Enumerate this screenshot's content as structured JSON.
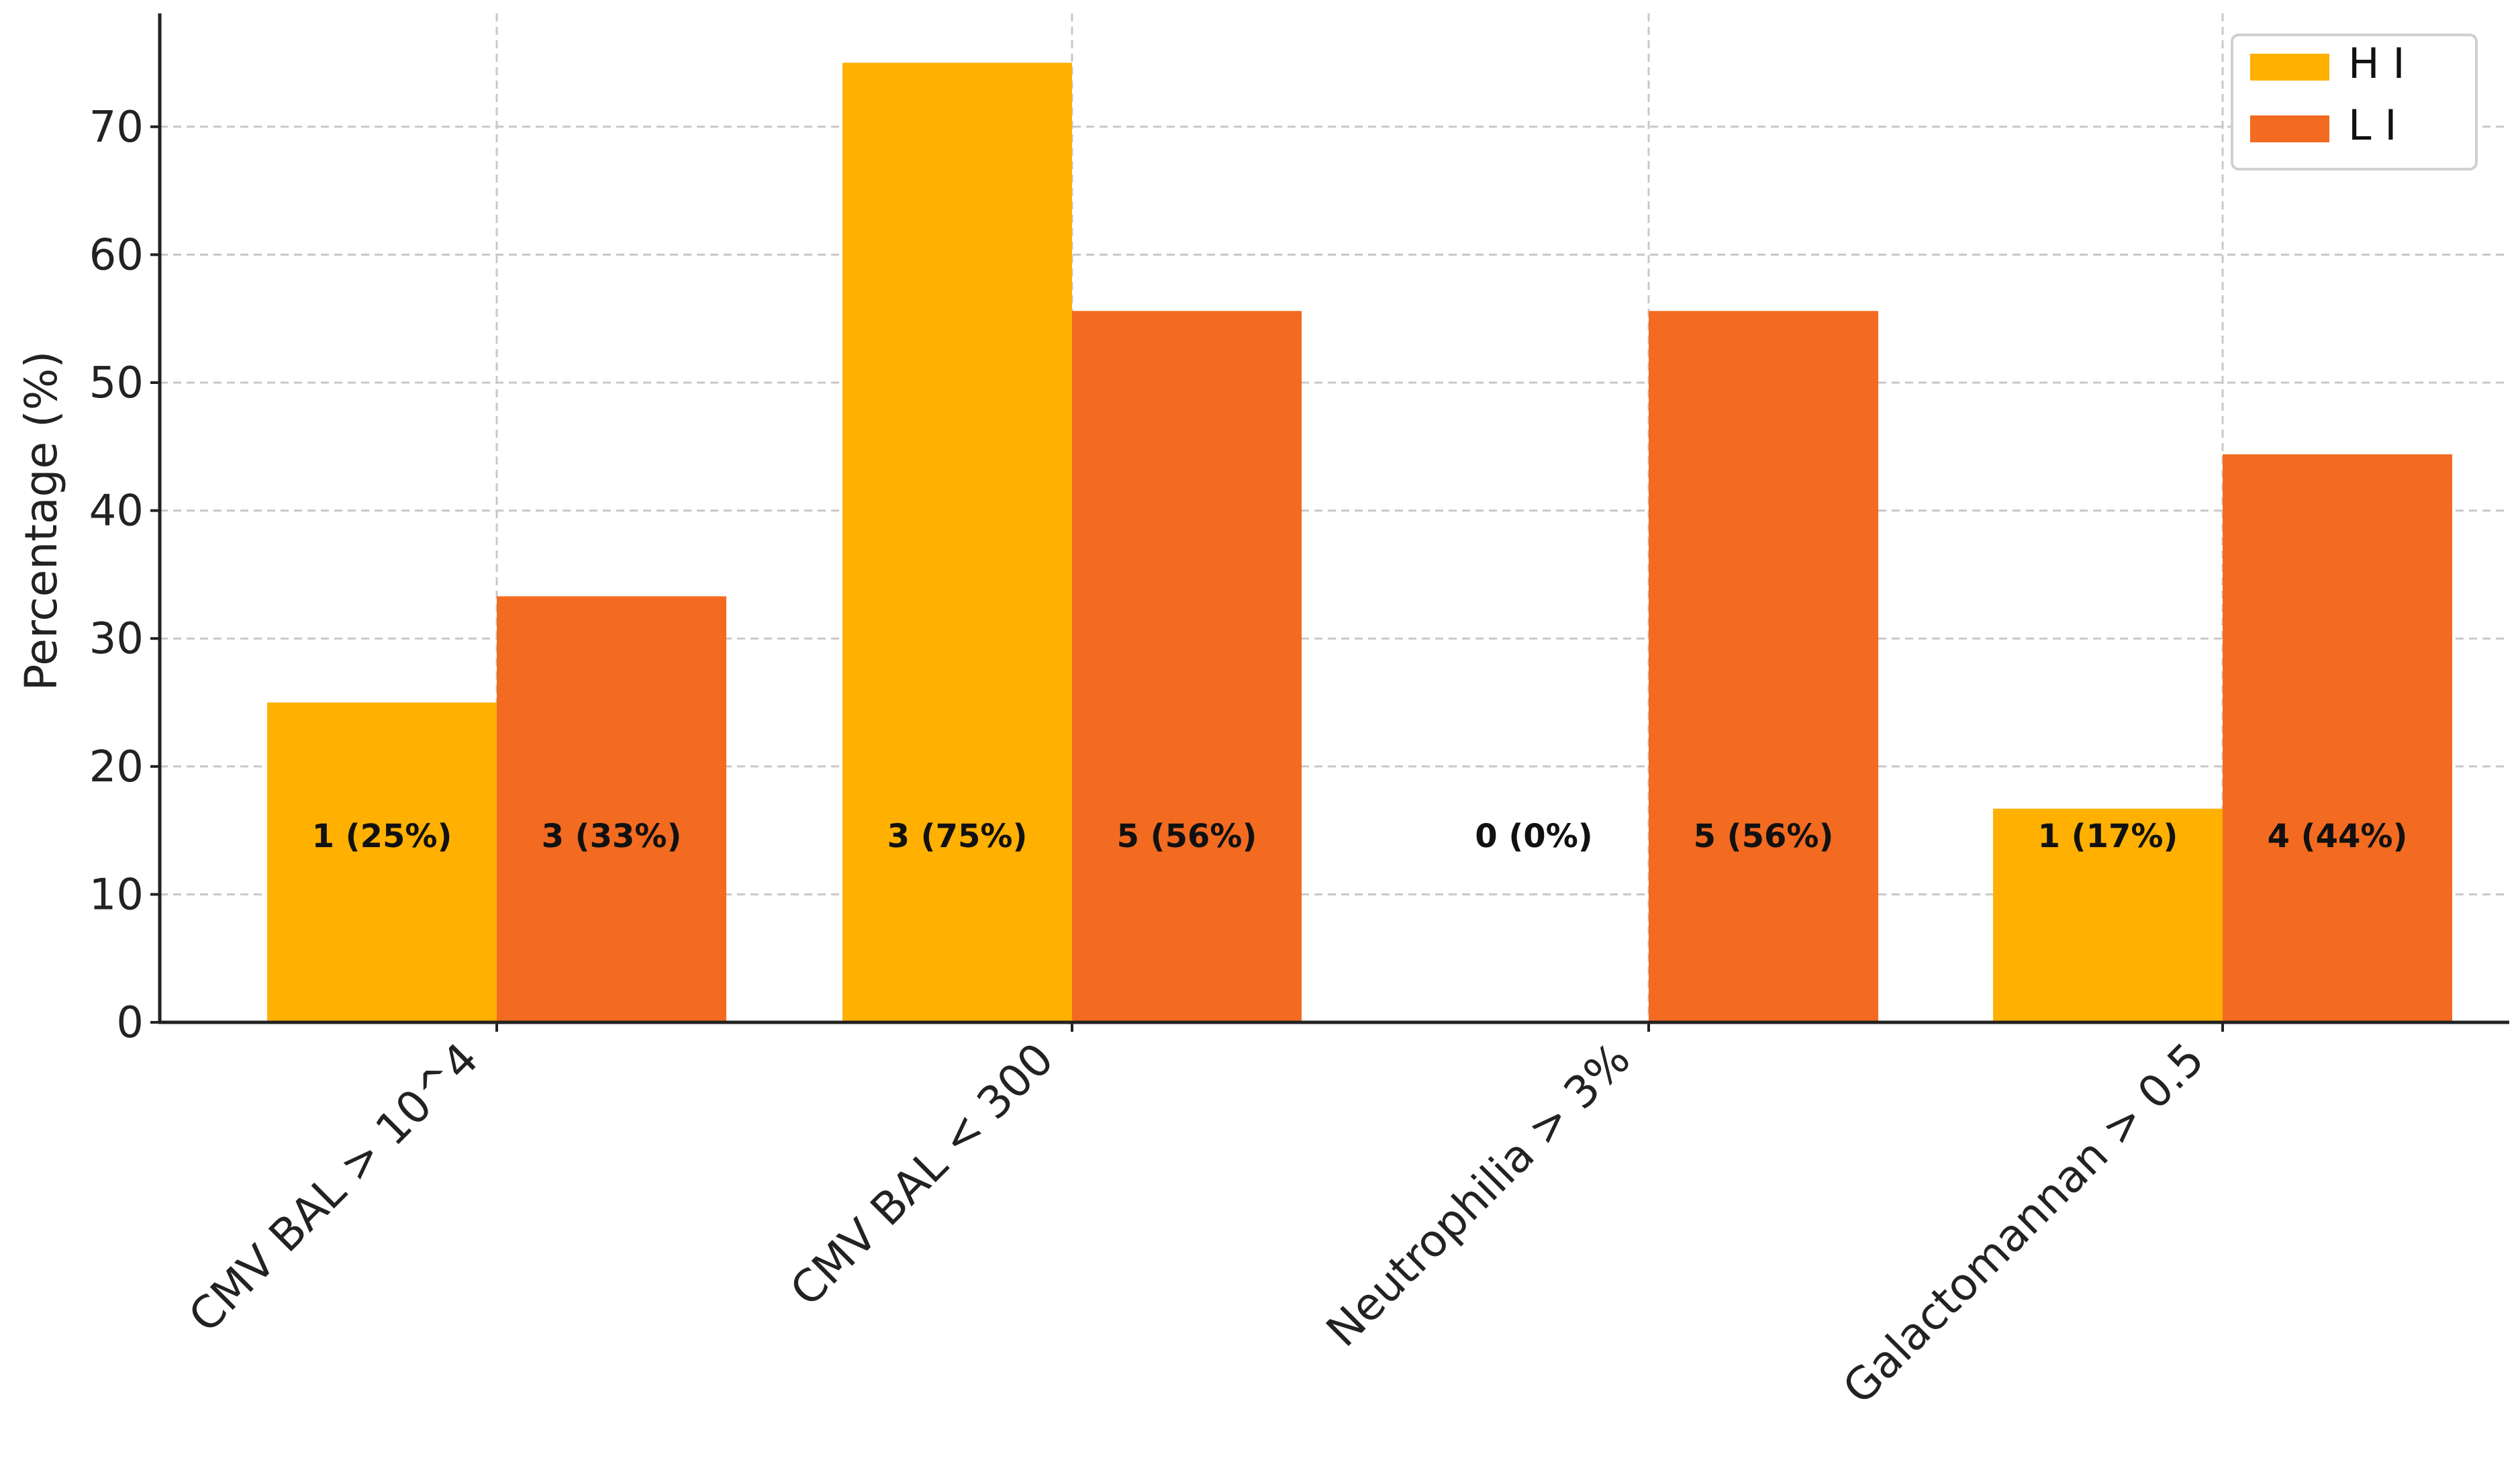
{
  "chart_data": {
    "type": "bar",
    "title": "",
    "xlabel": "",
    "ylabel": "Percentage (%)",
    "ylim": [
      0,
      78
    ],
    "yticks": [
      0,
      10,
      20,
      30,
      40,
      50,
      60,
      70
    ],
    "grid": true,
    "legend_position": "top-right",
    "categories": [
      "CMV BAL > 10^4",
      "CMV BAL < 300",
      "Neutrophilia > 3%",
      "Galactomannan > 0.5"
    ],
    "series": [
      {
        "name": "H I",
        "color": "#FFB000",
        "values": [
          25,
          75,
          0,
          16.7
        ],
        "labels": [
          "1 (25%)",
          "3 (75%)",
          "0 (0%)",
          "1 (17%)"
        ]
      },
      {
        "name": "L I",
        "color": "#F26B21",
        "values": [
          33.3,
          55.6,
          55.6,
          44.4
        ],
        "labels": [
          "3 (33%)",
          "5 (56%)",
          "5 (56%)",
          "4 (44%)"
        ]
      }
    ]
  }
}
